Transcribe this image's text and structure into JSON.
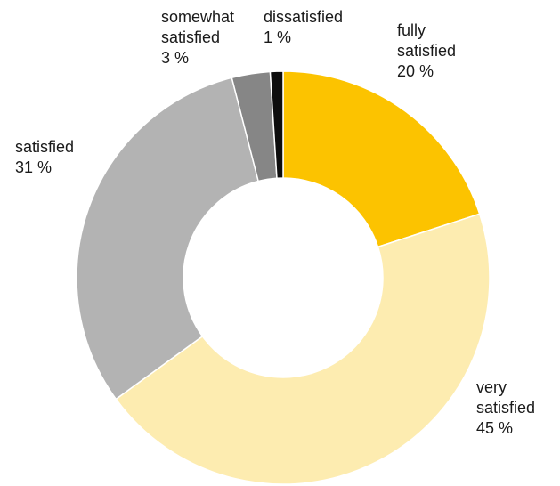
{
  "chart_data": {
    "type": "pie",
    "donut": true,
    "title": "",
    "slices": [
      {
        "label": [
          "fully",
          "satisfied"
        ],
        "value_label": "20 %",
        "value": 20,
        "color": "#fcc300"
      },
      {
        "label": [
          "very",
          "satisfied"
        ],
        "value_label": "45 %",
        "value": 45,
        "color": "#fdecb0"
      },
      {
        "label": [
          "satisfied"
        ],
        "value_label": "31 %",
        "value": 31,
        "color": "#b3b3b3"
      },
      {
        "label": [
          "somewhat",
          "satisfied"
        ],
        "value_label": "3 %",
        "value": 3,
        "color": "#868686"
      },
      {
        "label": [
          "dissatisfied"
        ],
        "value_label": "1 %",
        "value": 1,
        "color": "#0d0d0d"
      }
    ]
  }
}
